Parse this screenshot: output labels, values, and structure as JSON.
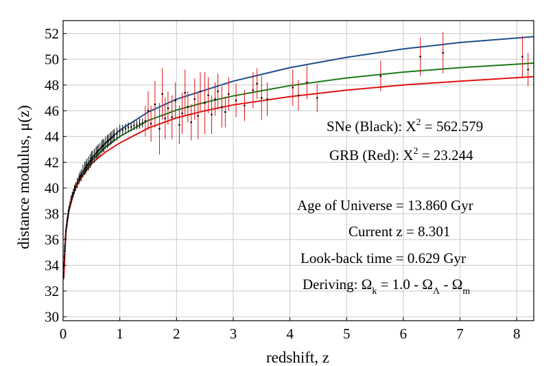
{
  "chart_data": {
    "type": "scatter",
    "title": "",
    "xlabel": "redshift, z",
    "ylabel": "distance modulus, μ(z)",
    "xlim": [
      0,
      8.3
    ],
    "ylim": [
      29.7,
      53
    ],
    "x_ticks": [
      0,
      1,
      2,
      3,
      4,
      5,
      6,
      7,
      8
    ],
    "y_ticks": [
      30,
      32,
      34,
      36,
      38,
      40,
      42,
      44,
      46,
      48,
      50,
      52
    ],
    "grid": true,
    "curves": [
      {
        "name": "blue model",
        "color": "#1f4e8c",
        "x": [
          0.01,
          0.05,
          0.1,
          0.2,
          0.3,
          0.5,
          0.75,
          1.0,
          1.5,
          2.0,
          2.5,
          3.0,
          4.0,
          5.0,
          6.0,
          7.0,
          8.3
        ],
        "y": [
          33.1,
          36.7,
          38.3,
          39.9,
          40.9,
          42.3,
          43.5,
          44.5,
          45.9,
          46.9,
          47.6,
          48.3,
          49.35,
          50.15,
          50.8,
          51.3,
          51.75
        ]
      },
      {
        "name": "green model",
        "color": "#1a7a1a",
        "x": [
          0.01,
          0.05,
          0.1,
          0.2,
          0.3,
          0.5,
          0.75,
          1.0,
          1.5,
          2.0,
          2.5,
          3.0,
          4.0,
          5.0,
          6.0,
          7.0,
          8.3
        ],
        "y": [
          33.1,
          36.7,
          38.3,
          39.9,
          40.8,
          42.1,
          43.2,
          44.0,
          45.25,
          46.05,
          46.65,
          47.15,
          47.95,
          48.55,
          49.0,
          49.35,
          49.7
        ]
      },
      {
        "name": "red model",
        "color": "#e01010",
        "x": [
          0.01,
          0.05,
          0.1,
          0.2,
          0.3,
          0.5,
          0.75,
          1.0,
          1.5,
          2.0,
          2.5,
          3.0,
          4.0,
          5.0,
          6.0,
          7.0,
          8.3
        ],
        "y": [
          33.0,
          36.6,
          38.2,
          39.8,
          40.7,
          41.9,
          42.8,
          43.5,
          44.65,
          45.45,
          46.0,
          46.45,
          47.1,
          47.6,
          48.0,
          48.3,
          48.65
        ]
      }
    ],
    "sne": {
      "name": "SNe (Black)",
      "color": "#000000",
      "points": [
        [
          0.01,
          33.2,
          0.3
        ],
        [
          0.015,
          34.0,
          0.3
        ],
        [
          0.02,
          34.6,
          0.3
        ],
        [
          0.025,
          35.1,
          0.3
        ],
        [
          0.03,
          35.5,
          0.3
        ],
        [
          0.04,
          36.1,
          0.25
        ],
        [
          0.05,
          36.6,
          0.25
        ],
        [
          0.06,
          37.0,
          0.25
        ],
        [
          0.07,
          37.4,
          0.3
        ],
        [
          0.08,
          37.7,
          0.3
        ],
        [
          0.09,
          38.0,
          0.3
        ],
        [
          0.1,
          38.3,
          0.3
        ],
        [
          0.12,
          38.7,
          0.3
        ],
        [
          0.14,
          39.1,
          0.3
        ],
        [
          0.16,
          39.4,
          0.3
        ],
        [
          0.18,
          39.6,
          0.3
        ],
        [
          0.2,
          39.9,
          0.35
        ],
        [
          0.22,
          40.1,
          0.35
        ],
        [
          0.25,
          40.4,
          0.4
        ],
        [
          0.28,
          40.7,
          0.4
        ],
        [
          0.3,
          40.9,
          0.4
        ],
        [
          0.32,
          41.0,
          0.45
        ],
        [
          0.35,
          41.3,
          0.5
        ],
        [
          0.38,
          41.5,
          0.5
        ],
        [
          0.4,
          41.6,
          0.5
        ],
        [
          0.42,
          41.8,
          0.5
        ],
        [
          0.45,
          41.9,
          0.55
        ],
        [
          0.48,
          42.1,
          0.55
        ],
        [
          0.5,
          42.3,
          0.55
        ],
        [
          0.52,
          42.4,
          0.5
        ],
        [
          0.55,
          42.5,
          0.55
        ],
        [
          0.58,
          42.7,
          0.5
        ],
        [
          0.6,
          42.8,
          0.5
        ],
        [
          0.62,
          42.9,
          0.5
        ],
        [
          0.65,
          43.0,
          0.5
        ],
        [
          0.68,
          43.2,
          0.5
        ],
        [
          0.7,
          43.3,
          0.5
        ],
        [
          0.72,
          43.3,
          0.5
        ],
        [
          0.75,
          43.5,
          0.5
        ],
        [
          0.78,
          43.6,
          0.5
        ],
        [
          0.8,
          43.7,
          0.5
        ],
        [
          0.83,
          43.8,
          0.5
        ],
        [
          0.85,
          43.9,
          0.5
        ],
        [
          0.88,
          44.0,
          0.5
        ],
        [
          0.9,
          44.1,
          0.5
        ],
        [
          0.95,
          44.2,
          0.5
        ],
        [
          1.0,
          44.4,
          0.5
        ],
        [
          1.05,
          44.5,
          0.4
        ],
        [
          1.1,
          44.6,
          0.4
        ],
        [
          1.15,
          44.7,
          0.4
        ],
        [
          1.2,
          44.75,
          0.35
        ],
        [
          1.25,
          44.85,
          0.35
        ],
        [
          1.3,
          44.9,
          0.35
        ],
        [
          1.35,
          45.0,
          0.4
        ],
        [
          1.4,
          45.05,
          0.35
        ]
      ]
    },
    "grb": {
      "name": "GRB (Red)",
      "color": "#e01010",
      "points": [
        [
          1.45,
          45.2,
          1.2
        ],
        [
          1.5,
          46.0,
          1.5
        ],
        [
          1.55,
          45.0,
          1.4
        ],
        [
          1.62,
          46.5,
          1.8
        ],
        [
          1.7,
          44.6,
          2.0
        ],
        [
          1.75,
          47.3,
          2.0
        ],
        [
          1.8,
          45.4,
          1.6
        ],
        [
          1.85,
          46.2,
          1.3
        ],
        [
          1.92,
          45.5,
          1.7
        ],
        [
          1.98,
          46.8,
          1.4
        ],
        [
          2.05,
          44.9,
          1.5
        ],
        [
          2.1,
          45.8,
          1.6
        ],
        [
          2.15,
          47.4,
          1.8
        ],
        [
          2.2,
          46.3,
          1.2
        ],
        [
          2.26,
          45.1,
          1.4
        ],
        [
          2.32,
          46.9,
          1.6
        ],
        [
          2.38,
          45.6,
          1.8
        ],
        [
          2.42,
          47.5,
          1.5
        ],
        [
          2.5,
          46.6,
          2.4
        ],
        [
          2.56,
          47.2,
          1.4
        ],
        [
          2.62,
          45.7,
          1.5
        ],
        [
          2.68,
          46.9,
          1.3
        ],
        [
          2.73,
          47.5,
          1.4
        ],
        [
          2.8,
          46.3,
          1.6
        ],
        [
          2.86,
          45.9,
          1.2
        ],
        [
          2.92,
          47.3,
          1.3
        ],
        [
          3.05,
          46.8,
          1.3
        ],
        [
          3.2,
          46.4,
          1.2
        ],
        [
          3.35,
          47.6,
          1.4
        ],
        [
          3.42,
          48.1,
          1.2
        ],
        [
          3.5,
          47.0,
          1.7
        ],
        [
          3.6,
          46.9,
          1.3
        ],
        [
          4.05,
          47.8,
          1.4
        ],
        [
          4.15,
          47.2,
          1.2
        ],
        [
          4.3,
          48.2,
          1.3
        ],
        [
          4.48,
          47.0,
          1.1
        ],
        [
          5.6,
          48.7,
          1.2
        ],
        [
          6.3,
          50.2,
          1.5
        ],
        [
          6.7,
          50.5,
          1.6
        ],
        [
          8.1,
          50.2,
          1.6
        ],
        [
          8.2,
          49.2,
          1.3
        ]
      ]
    },
    "annotations": {
      "sne_chi_prefix": "SNe (Black): X",
      "sne_chi_exp": "2",
      "sne_chi_value": " = 562.579",
      "grb_chi_prefix": "GRB (Red): X",
      "grb_chi_exp": "2",
      "grb_chi_value": " = 23.244",
      "age": "Age of Universe = 13.860 Gyr",
      "current_z": "Current z = 8.301",
      "lookback": "Look-back time = 0.629 Gyr",
      "deriving_prefix": "Deriving: Ω",
      "deriving_sub_k": "k",
      "deriving_mid1": " = 1.0 - Ω",
      "deriving_sub_lambda": "Λ",
      "deriving_mid2": " - Ω",
      "deriving_sub_m": "m"
    }
  }
}
